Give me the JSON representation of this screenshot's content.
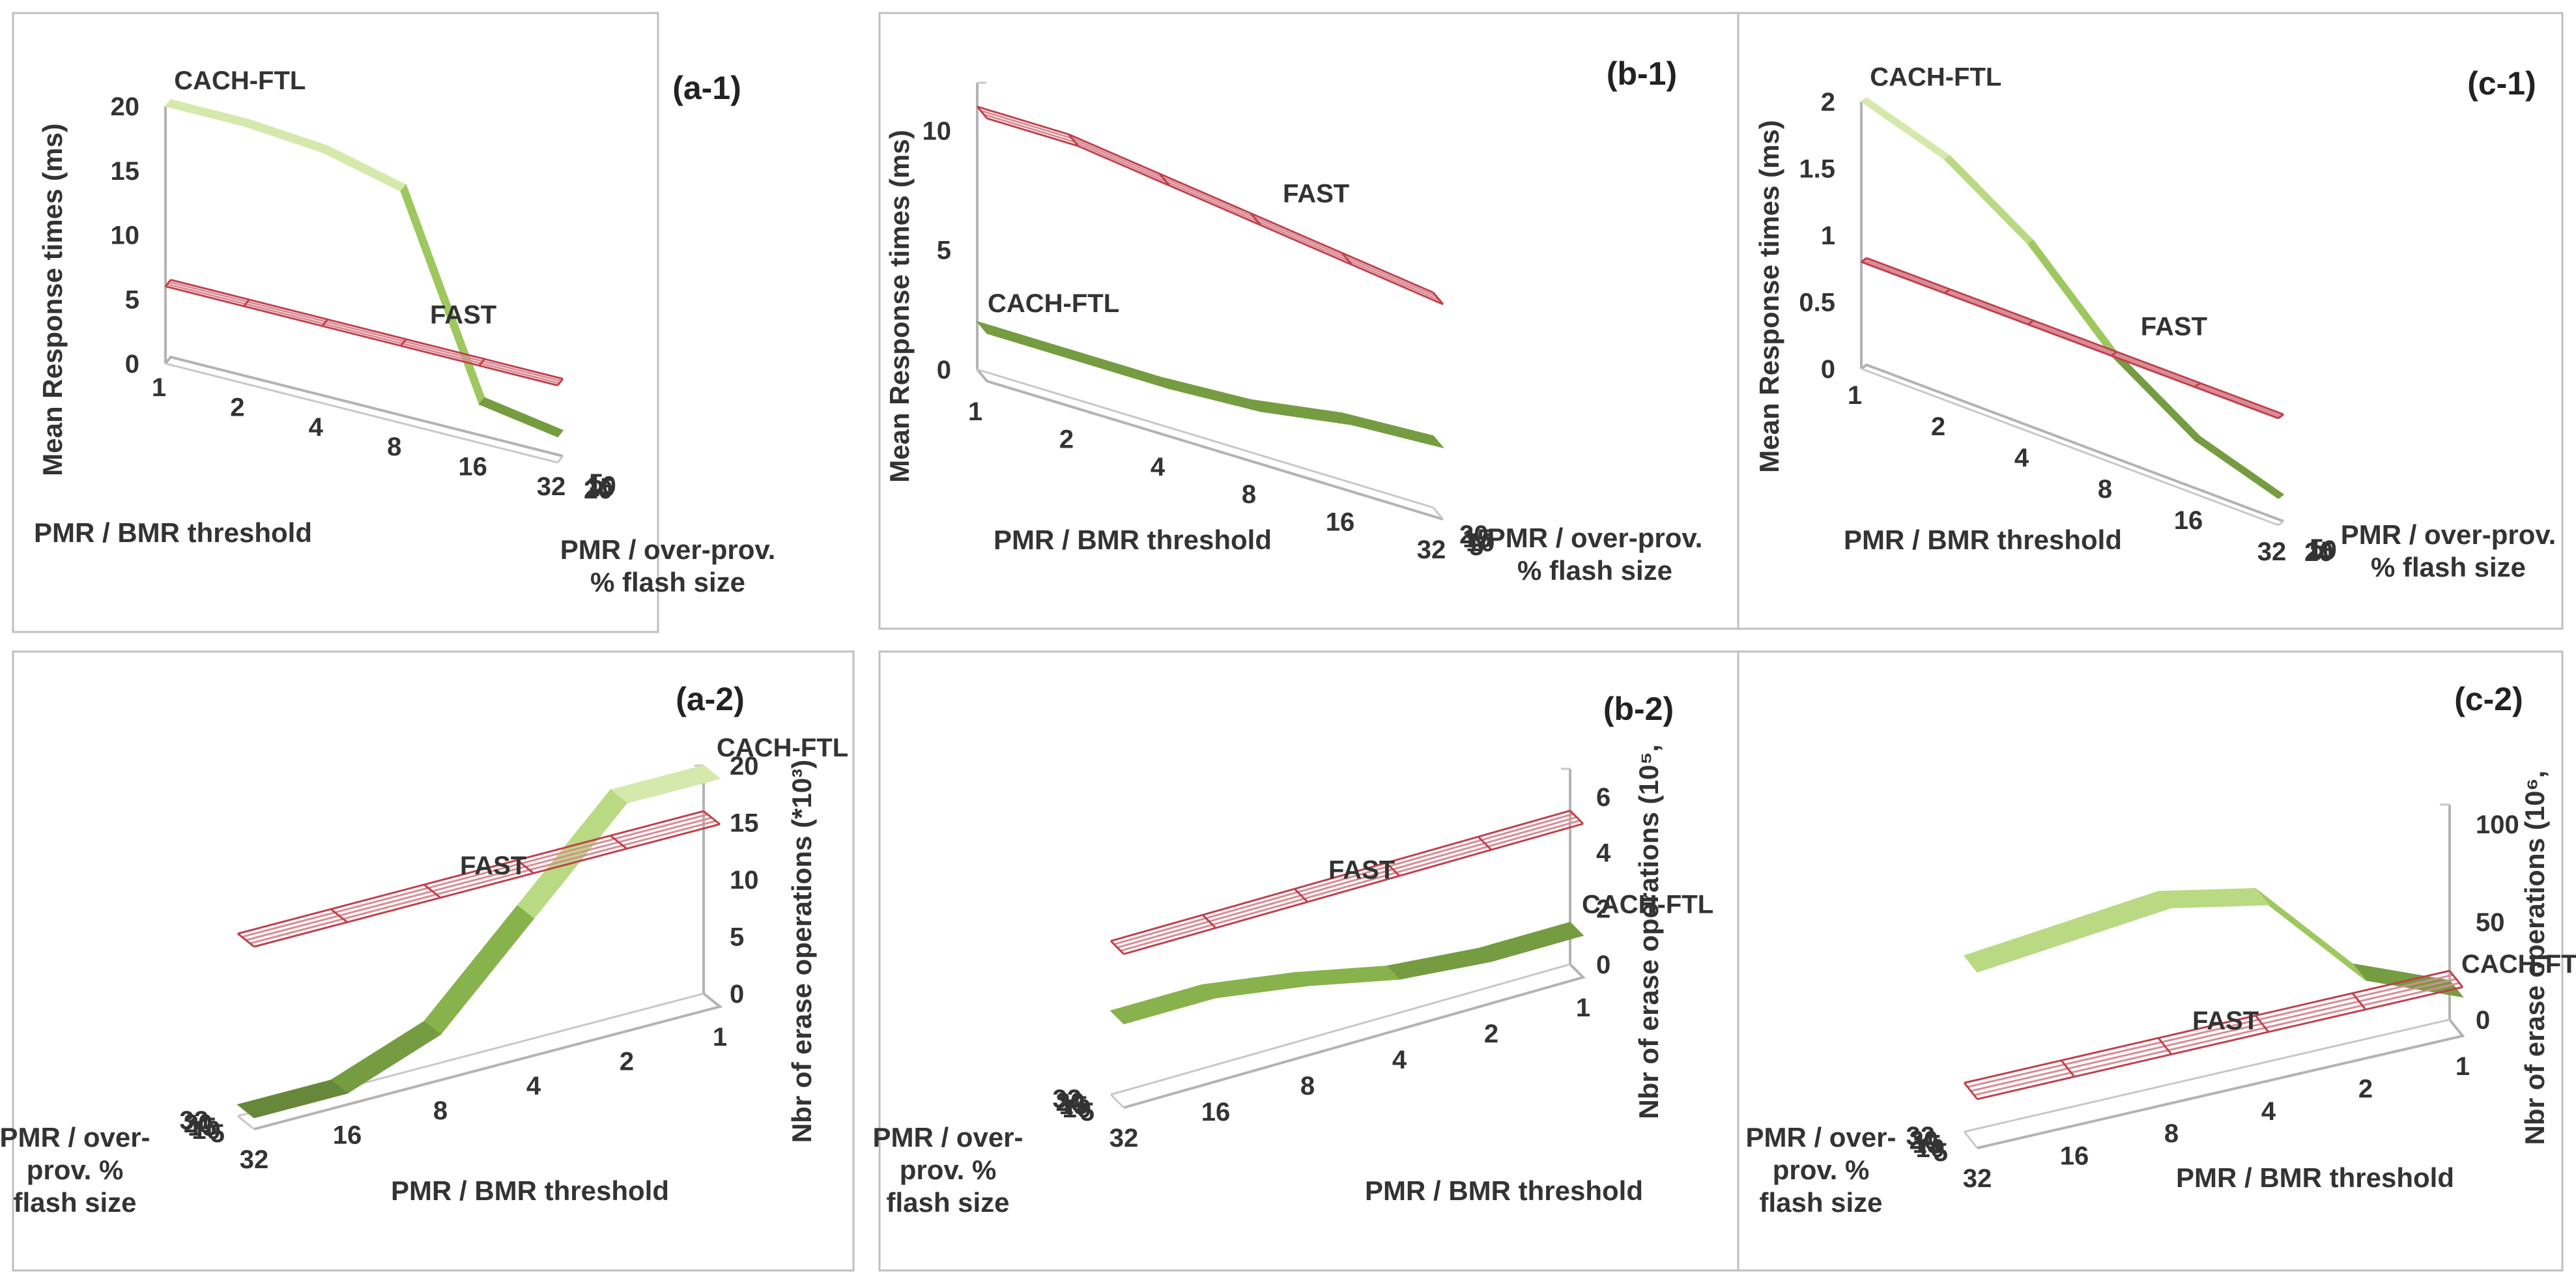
{
  "chart_data": [
    {
      "id": "a-1",
      "type": "surface3d",
      "panel_label": "(a-1)",
      "zlabel": "Mean Response times (ms)",
      "z_ticks": [
        "0",
        "5",
        "10",
        "15",
        "20"
      ],
      "zlim": [
        0,
        20
      ],
      "threshold_label": "PMR / BMR threshold",
      "threshold_ticks": [
        "1",
        "2",
        "4",
        "8",
        "16",
        "32"
      ],
      "overprov_label_lines": [
        "PMR / over-prov.",
        "% flash size"
      ],
      "overprov_ticks": [
        "5",
        "10",
        "15",
        "20"
      ],
      "series": [
        {
          "name": "CACH-FTL",
          "style": "solid",
          "values_by_threshold": [
            20,
            20,
            19.5,
            18,
            3,
            2
          ]
        },
        {
          "name": "FAST",
          "style": "wire",
          "values_by_threshold": [
            6,
            6,
            6,
            6,
            6,
            6
          ]
        }
      ]
    },
    {
      "id": "b-1",
      "type": "surface3d",
      "panel_label": "(b-1)",
      "zlabel": "Mean Response times (ms)",
      "z_ticks": [
        "0",
        "5",
        "10"
      ],
      "zlim": [
        0,
        12
      ],
      "threshold_label": "PMR / BMR threshold",
      "threshold_ticks": [
        "1",
        "2",
        "4",
        "8",
        "16",
        "32"
      ],
      "overprov_label_lines": [
        "PMR / over-prov.",
        "% flash size"
      ],
      "overprov_ticks": [
        "5",
        "10",
        "15",
        "20"
      ],
      "series": [
        {
          "name": "CACH-FTL",
          "style": "solid",
          "values_by_threshold": [
            2,
            2,
            2,
            2.2,
            2.8,
            3
          ]
        },
        {
          "name": "FAST",
          "style": "wire",
          "values_by_threshold": [
            11,
            11,
            10.5,
            10,
            9.5,
            9
          ]
        }
      ]
    },
    {
      "id": "c-1",
      "type": "surface3d",
      "panel_label": "(c-1)",
      "zlabel": "Mean Response times (ms)",
      "z_ticks": [
        "0",
        "0.5",
        "1",
        "1.5",
        "2"
      ],
      "zlim": [
        0,
        2
      ],
      "threshold_label": "PMR / BMR threshold",
      "threshold_ticks": [
        "1",
        "2",
        "4",
        "8",
        "16",
        "32"
      ],
      "overprov_label_lines": [
        "PMR / over-prov.",
        "% flash size"
      ],
      "overprov_ticks": [
        "5",
        "10",
        "15",
        "20"
      ],
      "series": [
        {
          "name": "CACH-FTL",
          "style": "solid",
          "values_by_threshold": [
            2,
            1.8,
            1.4,
            0.8,
            0.4,
            0.2
          ]
        },
        {
          "name": "FAST",
          "style": "wire",
          "values_by_threshold": [
            0.8,
            0.8,
            0.8,
            0.8,
            0.8,
            0.8
          ]
        }
      ]
    },
    {
      "id": "a-2",
      "type": "surface3d",
      "panel_label": "(a-2)",
      "zlabel": "Nbr of erase operations (*10³)",
      "z_ticks": [
        "0",
        "5",
        "10",
        "15",
        "20"
      ],
      "zlim": [
        0,
        20
      ],
      "threshold_label": "PMR / BMR threshold",
      "threshold_ticks": [
        "1",
        "2",
        "4",
        "8",
        "16",
        "32"
      ],
      "overprov_label_lines": [
        "PMR / over-",
        "prov. %",
        "flash size"
      ],
      "overprov_ticks": [
        "5",
        "10",
        "15",
        "20",
        "32"
      ],
      "series": [
        {
          "name": "CACH-FTL",
          "style": "solid",
          "values_by_threshold": [
            20,
            20,
            12,
            4,
            1,
            1
          ]
        },
        {
          "name": "FAST",
          "style": "wire",
          "values_by_threshold": [
            16,
            16,
            16,
            16,
            16,
            16
          ]
        }
      ]
    },
    {
      "id": "b-2",
      "type": "surface3d",
      "panel_label": "(b-2)",
      "zlabel": "Nbr of erase operations (10⁵,",
      "z_ticks": [
        "0",
        "2",
        "4",
        "6"
      ],
      "zlim": [
        0,
        7
      ],
      "threshold_label": "PMR / BMR threshold",
      "threshold_ticks": [
        "1",
        "2",
        "4",
        "8",
        "16",
        "32"
      ],
      "overprov_label_lines": [
        "PMR / over-",
        "prov. %",
        "flash size"
      ],
      "overprov_ticks": [
        "5",
        "10",
        "15",
        "20",
        "32"
      ],
      "series": [
        {
          "name": "CACH-FTL",
          "style": "solid",
          "values_by_threshold": [
            1.5,
            1.5,
            1.8,
            2.5,
            3,
            3
          ]
        },
        {
          "name": "FAST",
          "style": "wire",
          "values_by_threshold": [
            5.5,
            5.5,
            5.5,
            5.5,
            5.5,
            5.5
          ]
        }
      ]
    },
    {
      "id": "c-2",
      "type": "surface3d",
      "panel_label": "(c-2)",
      "zlabel": "Nbr of erase operations (10⁶,",
      "z_ticks": [
        "0",
        "50",
        "100"
      ],
      "zlim": [
        0,
        110
      ],
      "threshold_label": "PMR / BMR threshold",
      "threshold_ticks": [
        "1",
        "2",
        "4",
        "8",
        "16",
        "32"
      ],
      "overprov_label_lines": [
        "PMR / over-",
        "prov. %",
        "flash size"
      ],
      "overprov_ticks": [
        "5",
        "10",
        "15",
        "20",
        "32"
      ],
      "series": [
        {
          "name": "CACH-FTL",
          "style": "solid",
          "values_by_threshold": [
            20,
            40,
            90,
            100,
            95,
            90
          ]
        },
        {
          "name": "FAST",
          "style": "wire",
          "values_by_threshold": [
            25,
            25,
            25,
            25,
            25,
            25
          ]
        }
      ]
    }
  ]
}
